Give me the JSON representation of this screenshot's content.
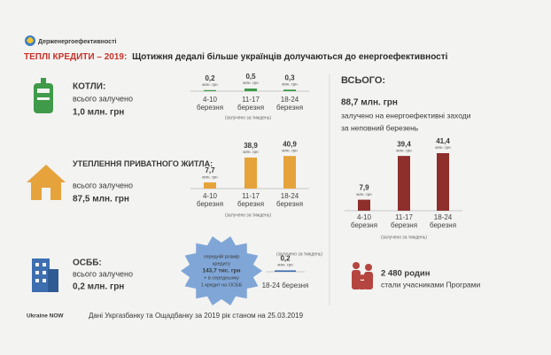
{
  "header": {
    "logo_text": "Держенергоефективності",
    "title_lead": "ТЕПЛІ КРЕДИТИ – 2019:",
    "title": "Щотижня дедалі більше українців долучаються до енергоефективності"
  },
  "sections": [
    {
      "name": "КОТЛИ:",
      "subtitle": "всього залучено",
      "total": "1,0 млн. грн"
    },
    {
      "name": "УТЕПЛЕННЯ ПРИВАТНОГО ЖИТЛА:",
      "subtitle": "всього залучено",
      "total": "87,5 млн. грн"
    },
    {
      "name": "ОСББ:",
      "subtitle": "всього залучено",
      "total": "0,2 млн. грн",
      "bubble": [
        "середній розмір",
        "кредиту",
        "143,7 тис. грн",
        "+ в середньому",
        "1 кредит на ОСББ"
      ]
    }
  ],
  "summary": {
    "title": "ВСЬОГО:",
    "total": "88,7 млн. грн",
    "description": [
      "залучено на енергоефективні заходи",
      "за неповний березень"
    ],
    "families": "2 480 родин",
    "families_text": "стали учасниками Програми"
  },
  "footer": {
    "logo": "Ukraine NOW",
    "source": "Дані Укргазбанку та Ощадбанку за 2019 рік станом на 25.03.2019"
  },
  "chart_data": [
    {
      "type": "bar",
      "color": "#3f9a4a",
      "value_unit": "млн. грн",
      "note": "(залучено за тиждень)",
      "categories": [
        [
          "4-10",
          "березня"
        ],
        [
          "11-17",
          "березня"
        ],
        [
          "18-24",
          "березня"
        ]
      ],
      "values": [
        0.2,
        0.5,
        0.3
      ],
      "value_labels": [
        "0,2",
        "0,5",
        "0,3"
      ]
    },
    {
      "type": "bar",
      "color": "#e6a33c",
      "value_unit": "млн. грн",
      "note": "(залучено за тиждень)",
      "categories": [
        [
          "4-10",
          "березня"
        ],
        [
          "11-17",
          "березня"
        ],
        [
          "18-24",
          "березня"
        ]
      ],
      "values": [
        7.7,
        38.9,
        40.9
      ],
      "value_labels": [
        "7,7",
        "38,9",
        "40,9"
      ]
    },
    {
      "type": "bar",
      "color": "#3d6fb0",
      "value_unit": "млн. грн",
      "note": "(залучено за тиждень)",
      "categories": [
        [
          "18-24 березня"
        ]
      ],
      "values": [
        0.2
      ],
      "value_labels": [
        "0,2"
      ]
    },
    {
      "type": "bar",
      "color": "#8e2f2c",
      "value_unit": "млн. грн",
      "note": "(залучено за тиждень)",
      "categories": [
        [
          "4-10",
          "березня"
        ],
        [
          "11-17",
          "березня"
        ],
        [
          "18-24",
          "березня"
        ]
      ],
      "values": [
        7.9,
        39.4,
        41.4
      ],
      "value_labels": [
        "7,9",
        "39,4",
        "41,4"
      ]
    }
  ]
}
